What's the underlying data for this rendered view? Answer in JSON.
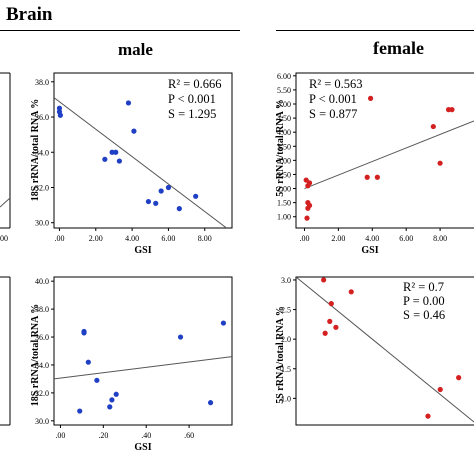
{
  "header": {
    "section_title": "Brain",
    "male_label": "male",
    "female_label": "female"
  },
  "colors": {
    "male_point": "#1f3fc4",
    "female_point": "#d42020",
    "fit_line": "#555555"
  },
  "chart_data": [
    {
      "id": "male-top",
      "type": "scatter",
      "xlabel": "GSI",
      "ylabel": "18S rRNA/total RNA %",
      "xlim": [
        -0.3,
        9.5
      ],
      "ylim": [
        29.7,
        38.5
      ],
      "xticks": [
        0,
        2,
        4,
        6,
        8
      ],
      "xtick_labels": [
        ".00",
        "2.00",
        "4.00",
        "6.00",
        "8.00"
      ],
      "yticks": [
        30,
        32,
        34,
        36,
        38
      ],
      "ytick_labels": [
        "30.0",
        "32.0",
        "34.0",
        "36.0",
        "38.0"
      ],
      "points": [
        [
          0.0,
          36.3
        ],
        [
          0.0,
          36.5
        ],
        [
          0.05,
          36.1
        ],
        [
          2.5,
          33.6
        ],
        [
          2.9,
          34.0
        ],
        [
          3.1,
          34.0
        ],
        [
          3.3,
          33.5
        ],
        [
          3.8,
          36.8
        ],
        [
          4.1,
          35.2
        ],
        [
          4.9,
          31.2
        ],
        [
          5.3,
          31.1
        ],
        [
          5.6,
          31.8
        ],
        [
          6.0,
          32.0
        ],
        [
          6.6,
          30.8
        ],
        [
          7.5,
          31.5
        ]
      ],
      "fit": [
        [
          -0.3,
          37.1
        ],
        [
          9.2,
          29.7
        ]
      ],
      "stats": {
        "r2": "R² = 0.666",
        "p": "P < 0.001",
        "s": "S = 1.295"
      }
    },
    {
      "id": "female-top",
      "type": "scatter",
      "xlabel": "GSI",
      "ylabel": "5S rRNA/total RNA %",
      "xlim": [
        -0.5,
        10
      ],
      "ylim": [
        0.6,
        6.1
      ],
      "xticks": [
        0,
        2,
        4,
        6,
        8
      ],
      "xtick_labels": [
        ".00",
        "2.00",
        "4.00",
        "6.00",
        "8.00"
      ],
      "yticks": [
        1,
        1.5,
        2,
        2.5,
        3,
        3.5,
        4,
        4.5,
        5,
        5.5,
        6
      ],
      "ytick_labels": [
        "1.00",
        "1.50",
        "2.00",
        "2.50",
        "3.00",
        "3.50",
        "4.00",
        "4.50",
        "5.00",
        "5.50",
        "6.00"
      ],
      "points": [
        [
          0.1,
          2.3
        ],
        [
          0.2,
          2.1
        ],
        [
          0.2,
          1.5
        ],
        [
          0.2,
          1.3
        ],
        [
          0.15,
          0.95
        ],
        [
          0.3,
          2.2
        ],
        [
          0.3,
          1.4
        ],
        [
          3.7,
          2.4
        ],
        [
          3.9,
          5.2
        ],
        [
          4.3,
          2.4
        ],
        [
          7.6,
          4.2
        ],
        [
          8.0,
          2.9
        ],
        [
          8.5,
          4.8
        ],
        [
          8.7,
          4.8
        ]
      ],
      "fit": [
        [
          0.0,
          2.0
        ],
        [
          10.0,
          4.4
        ]
      ],
      "stats": {
        "r2": "R² = 0.563",
        "p": "P < 0.001",
        "s": "S = 0.877"
      }
    },
    {
      "id": "male-bottom",
      "type": "scatter",
      "xlabel": "GSI",
      "ylabel": "18S rRNA/total RNA %",
      "xlim": [
        -0.03,
        0.8
      ],
      "ylim": [
        29.7,
        40.3
      ],
      "xticks": [
        0,
        0.2,
        0.4,
        0.6
      ],
      "xtick_labels": [
        ".00",
        ".20",
        ".40",
        ".60"
      ],
      "yticks": [
        30,
        32,
        34,
        36,
        38,
        40
      ],
      "ytick_labels": [
        "30.0",
        "32.0",
        "34.0",
        "36.0",
        "38.0",
        "40.0"
      ],
      "points": [
        [
          0.09,
          30.7
        ],
        [
          0.11,
          36.4
        ],
        [
          0.11,
          36.3
        ],
        [
          0.13,
          34.2
        ],
        [
          0.17,
          32.9
        ],
        [
          0.23,
          31.0
        ],
        [
          0.24,
          31.5
        ],
        [
          0.26,
          31.9
        ],
        [
          0.56,
          36.0
        ],
        [
          0.7,
          31.3
        ],
        [
          0.76,
          37.0
        ]
      ],
      "fit": [
        [
          -0.03,
          33.0
        ],
        [
          0.8,
          34.6
        ]
      ],
      "stats": {
        "r2": "",
        "p": "",
        "s": ""
      }
    },
    {
      "id": "female-bottom",
      "type": "scatter",
      "xlabel": "",
      "ylabel": "5S rRNA/total RNA %",
      "xlim": [
        0,
        5.8
      ],
      "ylim": [
        0.55,
        3.05
      ],
      "xticks": [],
      "xtick_labels": [],
      "yticks": [
        1,
        1.5,
        2,
        2.5,
        3
      ],
      "ytick_labels": [
        "1.0",
        "1.5",
        "2.0",
        "2.5",
        "3.0"
      ],
      "points": [
        [
          0.9,
          3.0
        ],
        [
          0.95,
          2.1
        ],
        [
          1.1,
          2.3
        ],
        [
          1.15,
          2.6
        ],
        [
          1.3,
          2.2
        ],
        [
          1.8,
          2.8
        ],
        [
          4.3,
          0.7
        ],
        [
          4.7,
          1.15
        ],
        [
          5.3,
          1.35
        ]
      ],
      "fit": [
        [
          0.0,
          3.05
        ],
        [
          5.8,
          0.6
        ]
      ],
      "stats": {
        "r2": "R² = 0.7",
        "p": "P = 0.00",
        "s": "S = 0.46"
      }
    },
    {
      "id": "left-partial-top",
      "type": "scatter",
      "xlabel": "",
      "ylabel": "",
      "xtick_labels": [
        ".00"
      ],
      "points": []
    },
    {
      "id": "left-partial-bottom",
      "type": "scatter",
      "xlabel": "",
      "ylabel": "",
      "xtick_labels": [],
      "points": []
    }
  ]
}
